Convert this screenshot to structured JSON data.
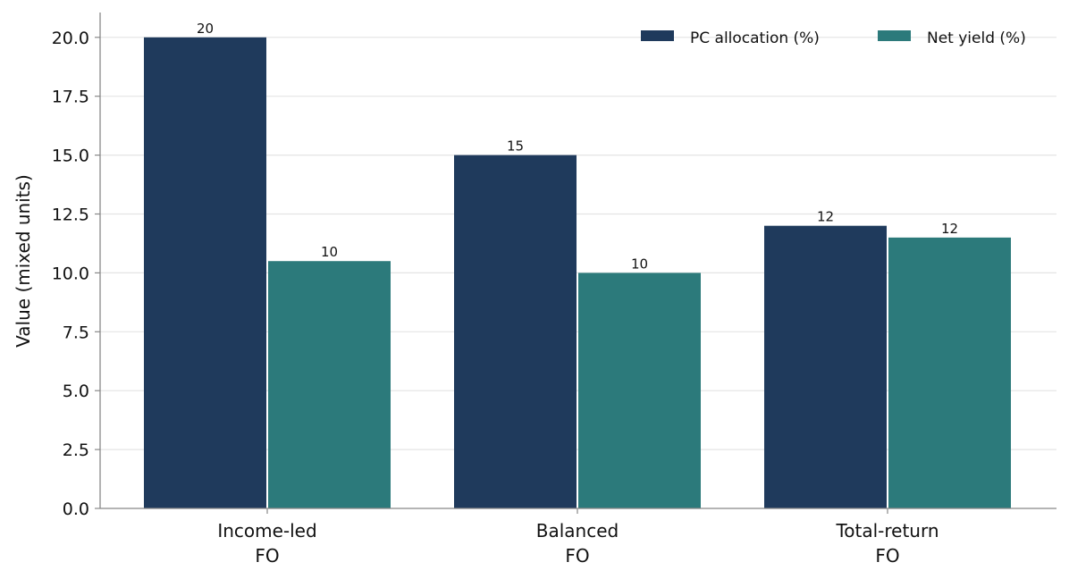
{
  "chart_data": {
    "type": "bar",
    "title": "",
    "xlabel": "",
    "ylabel": "Value (mixed units)",
    "categories": [
      [
        "Income-led",
        "FO"
      ],
      [
        "Balanced",
        "FO"
      ],
      [
        "Total-return",
        "FO"
      ]
    ],
    "series": [
      {
        "name": "PC allocation (%)",
        "values": [
          20,
          15,
          12
        ],
        "labels": [
          "20",
          "15",
          "12"
        ],
        "color": "#1f3a5c"
      },
      {
        "name": "Net yield (%)",
        "values": [
          10.5,
          10,
          11.5
        ],
        "labels": [
          "10",
          "10",
          "12"
        ],
        "color": "#2c7a7b"
      }
    ],
    "ylim": [
      0,
      21
    ],
    "yticks": [
      0,
      2.5,
      5,
      7.5,
      10,
      12.5,
      15,
      17.5,
      20
    ],
    "ytick_labels": [
      "0.0",
      "2.5",
      "5.0",
      "7.5",
      "10.0",
      "12.5",
      "15.0",
      "17.5",
      "20.0"
    ],
    "grid": "horizontal",
    "legend_position": "top-right"
  }
}
